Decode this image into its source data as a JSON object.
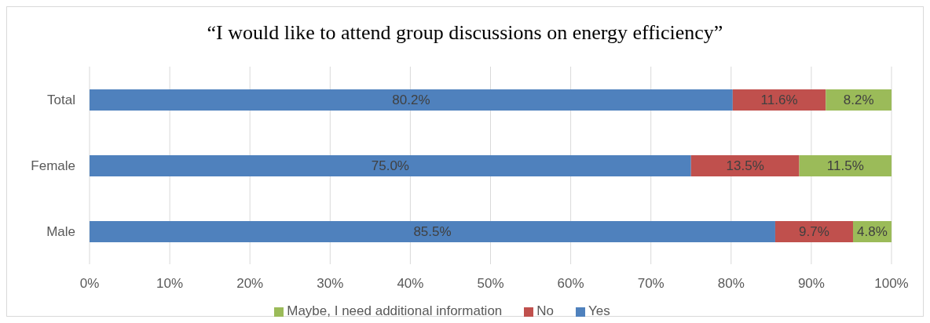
{
  "chart_data": {
    "type": "bar",
    "orientation": "horizontal",
    "stacked": true,
    "title": "“I would like to attend group discussions on energy efficiency”",
    "categories": [
      "Total",
      "Female",
      "Male"
    ],
    "series": [
      {
        "name": "Yes",
        "color": "#4f81bd",
        "values": [
          80.2,
          75.0,
          85.5
        ],
        "value_labels": [
          "80.2%",
          "75.0%",
          "85.5%"
        ]
      },
      {
        "name": "No",
        "color": "#c0504d",
        "values": [
          11.6,
          13.5,
          9.7
        ],
        "value_labels": [
          "11.6%",
          "13.5%",
          "9.7%"
        ]
      },
      {
        "name": "Maybe, I need additional information",
        "color": "#9bbb59",
        "values": [
          8.2,
          11.5,
          4.8
        ],
        "value_labels": [
          "8.2%",
          "11.5%",
          "4.8%"
        ]
      }
    ],
    "xlim": [
      0,
      100
    ],
    "xticks": [
      {
        "value": 0,
        "label": "0%"
      },
      {
        "value": 10,
        "label": "10%"
      },
      {
        "value": 20,
        "label": "20%"
      },
      {
        "value": 30,
        "label": "30%"
      },
      {
        "value": 40,
        "label": "40%"
      },
      {
        "value": 50,
        "label": "50%"
      },
      {
        "value": 60,
        "label": "60%"
      },
      {
        "value": 70,
        "label": "70%"
      },
      {
        "value": 80,
        "label": "80%"
      },
      {
        "value": 90,
        "label": "90%"
      },
      {
        "value": 100,
        "label": "100%"
      }
    ],
    "grid": "x",
    "legend": "bottom"
  }
}
